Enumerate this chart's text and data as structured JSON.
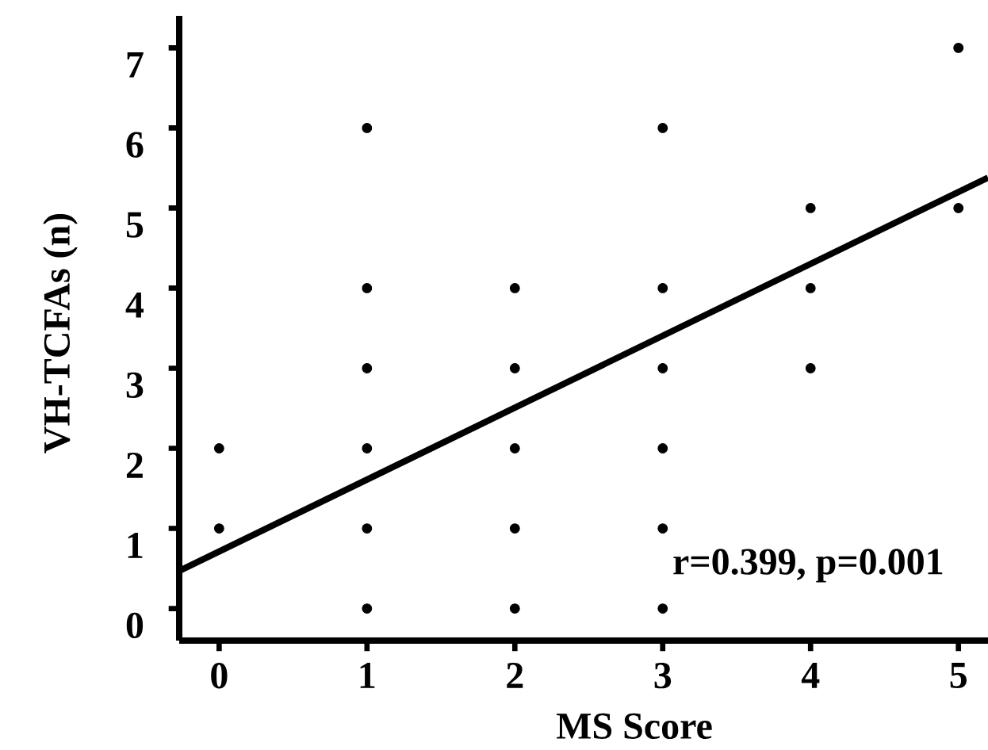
{
  "chart_data": {
    "type": "scatter",
    "xlabel": "MS Score",
    "ylabel": "VH-TCFAs (n)",
    "annotations": [
      "r=0.399, p=0.001"
    ],
    "xlim": [
      -0.27,
      5.2
    ],
    "ylim": [
      -0.4,
      7.4
    ],
    "xticks": [
      0,
      1,
      2,
      3,
      4,
      5
    ],
    "yticks": [
      0,
      1,
      2,
      3,
      4,
      5,
      6,
      7
    ],
    "series": [
      {
        "color": "#000000",
        "marker": "circle",
        "x": [
          0,
          0,
          1,
          1,
          1,
          1,
          1,
          1,
          2,
          2,
          2,
          2,
          2,
          3,
          3,
          3,
          3,
          3,
          3,
          4,
          4,
          4,
          5,
          5
        ],
        "values": [
          1,
          2,
          0,
          1,
          2,
          3,
          4,
          6,
          0,
          1,
          2,
          3,
          4,
          0,
          1,
          2,
          3,
          4,
          6,
          3,
          4,
          5,
          5,
          7
        ]
      },
      {
        "type": "line",
        "color": "#000000",
        "marker": "none",
        "x": [
          -0.27,
          5.2
        ],
        "values": [
          0.47,
          5.38
        ]
      }
    ]
  }
}
